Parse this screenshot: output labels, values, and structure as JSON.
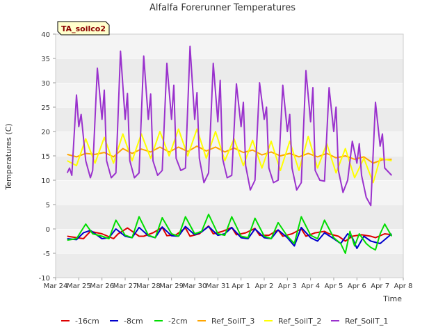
{
  "chart_data": {
    "type": "line",
    "title": "Alfalfa Forerunner Temperatures",
    "xlabel": "Time",
    "ylabel": "Temperatures (C)",
    "badge": "TA_soilco2",
    "xlim": [
      0,
      15
    ],
    "ylim": [
      -10,
      40
    ],
    "x_ticks": [
      {
        "x": 0,
        "label": "Mar 24"
      },
      {
        "x": 1,
        "label": "Mar 25"
      },
      {
        "x": 2,
        "label": "Mar 26"
      },
      {
        "x": 3,
        "label": "Mar 27"
      },
      {
        "x": 4,
        "label": "Mar 28"
      },
      {
        "x": 5,
        "label": "Mar 29"
      },
      {
        "x": 6,
        "label": "Mar 30"
      },
      {
        "x": 7,
        "label": "Mar 31"
      },
      {
        "x": 8,
        "label": "Apr 1"
      },
      {
        "x": 9,
        "label": "Apr 2"
      },
      {
        "x": 10,
        "label": "Apr 3"
      },
      {
        "x": 11,
        "label": "Apr 4"
      },
      {
        "x": 12,
        "label": "Apr 5"
      },
      {
        "x": 13,
        "label": "Apr 6"
      },
      {
        "x": 14,
        "label": "Apr 7"
      },
      {
        "x": 15,
        "label": "Apr 8"
      }
    ],
    "y_ticks": [
      -10,
      -5,
      0,
      5,
      10,
      15,
      20,
      25,
      30,
      35,
      40
    ],
    "grid": true,
    "legend_position": "bottom",
    "series": [
      {
        "name": "-16cm",
        "color": "#dd0000",
        "x": [
          0.5,
          1.2,
          1.5,
          2.0,
          2.5,
          2.7,
          3.1,
          3.6,
          3.8,
          4.2,
          4.6,
          4.8,
          5.2,
          5.6,
          5.8,
          6.2,
          6.6,
          6.8,
          7.2,
          7.6,
          7.8,
          8.2,
          8.6,
          8.8,
          9.2,
          9.6,
          9.8,
          10.2,
          10.6,
          10.8,
          11.2,
          11.6,
          11.8,
          12.2,
          12.5,
          12.8,
          13.2,
          13.6,
          13.8,
          14.2,
          14.5
        ],
        "y": [
          -1.5,
          -2.0,
          -0.5,
          -1.0,
          -2.0,
          -1.0,
          0.2,
          -1.5,
          -1.5,
          -0.8,
          0.3,
          -1.4,
          -1.2,
          0.2,
          -1.5,
          -1.0,
          0.6,
          -1.0,
          -0.5,
          0.3,
          -1.2,
          -0.8,
          0.1,
          -1.3,
          -1.3,
          -0.2,
          -1.5,
          -1.0,
          0.0,
          -1.5,
          -0.8,
          -0.5,
          -1.0,
          -1.5,
          -2.5,
          -1.5,
          -1.2,
          -1.5,
          -1.8,
          -1.0,
          -1.2
        ]
      },
      {
        "name": "-8cm",
        "color": "#0000cc",
        "x": [
          0.5,
          0.9,
          1.2,
          1.5,
          2.0,
          2.3,
          2.6,
          3.0,
          3.3,
          3.6,
          4.0,
          4.3,
          4.6,
          5.0,
          5.3,
          5.6,
          6.0,
          6.3,
          6.6,
          7.0,
          7.3,
          7.6,
          8.0,
          8.3,
          8.6,
          9.0,
          9.3,
          9.6,
          10.0,
          10.3,
          10.6,
          11.0,
          11.3,
          11.6,
          12.0,
          12.3,
          12.6,
          12.8,
          13.0,
          13.3,
          13.6,
          14.0,
          14.5
        ],
        "y": [
          -2.0,
          -2.2,
          -0.8,
          -0.3,
          -2.0,
          -1.8,
          0.0,
          -1.5,
          -1.8,
          0.3,
          -1.4,
          -1.8,
          0.4,
          -1.4,
          -1.5,
          0.5,
          -1.2,
          -0.6,
          0.5,
          -1.3,
          -1.0,
          0.3,
          -1.8,
          -2.0,
          0.0,
          -1.8,
          -2.0,
          -0.2,
          -1.8,
          -3.5,
          0.3,
          -1.8,
          -2.5,
          -0.8,
          -2.0,
          -3.0,
          -1.0,
          -1.8,
          -4.0,
          -1.5,
          -2.5,
          -3.0,
          -1.0
        ]
      },
      {
        "name": "-2cm",
        "color": "#00dd00",
        "x": [
          0.5,
          0.9,
          1.3,
          1.6,
          2.0,
          2.3,
          2.6,
          3.0,
          3.3,
          3.6,
          4.0,
          4.3,
          4.6,
          5.0,
          5.3,
          5.6,
          6.0,
          6.3,
          6.6,
          7.0,
          7.3,
          7.6,
          8.0,
          8.3,
          8.6,
          9.0,
          9.3,
          9.6,
          10.0,
          10.3,
          10.6,
          11.0,
          11.3,
          11.6,
          12.0,
          12.3,
          12.5,
          12.7,
          12.9,
          13.1,
          13.4,
          13.6,
          13.8,
          14.0,
          14.2,
          14.5
        ],
        "y": [
          -2.3,
          -2.0,
          1.0,
          -1.0,
          -1.5,
          -2.0,
          1.8,
          -1.3,
          -1.8,
          2.5,
          -1.3,
          -1.8,
          2.3,
          -1.0,
          -1.5,
          2.5,
          -1.0,
          -0.5,
          3.0,
          -1.0,
          -1.3,
          2.5,
          -1.5,
          -1.8,
          2.2,
          -1.5,
          -2.0,
          1.3,
          -1.5,
          -3.0,
          2.5,
          -1.3,
          -2.0,
          1.8,
          -1.8,
          -3.0,
          -5.0,
          -0.5,
          -3.5,
          -1.0,
          -3.0,
          -3.8,
          -4.3,
          -1.0,
          1.0,
          -1.5
        ]
      },
      {
        "name": "Ref_SoilT_3",
        "color": "#ffa500",
        "x": [
          0.5,
          0.9,
          1.3,
          1.7,
          2.1,
          2.5,
          2.9,
          3.3,
          3.7,
          4.1,
          4.5,
          4.9,
          5.3,
          5.7,
          6.1,
          6.5,
          6.9,
          7.3,
          7.7,
          8.1,
          8.5,
          8.9,
          9.3,
          9.7,
          10.1,
          10.5,
          10.9,
          11.3,
          11.7,
          12.1,
          12.5,
          12.9,
          13.3,
          13.7,
          14.1,
          14.5
        ],
        "y": [
          15.3,
          14.8,
          15.5,
          15.3,
          15.7,
          14.8,
          16.5,
          15.5,
          16.4,
          15.8,
          16.8,
          15.8,
          16.8,
          15.9,
          17.0,
          16.0,
          16.8,
          15.8,
          16.6,
          15.7,
          16.2,
          15.2,
          15.8,
          15.0,
          15.5,
          14.8,
          15.5,
          14.8,
          15.5,
          14.6,
          15.0,
          14.3,
          14.8,
          13.5,
          14.2,
          14.3
        ]
      },
      {
        "name": "Ref_SoilT_2",
        "color": "#ffff00",
        "x": [
          0.5,
          0.9,
          1.3,
          1.7,
          2.1,
          2.5,
          2.9,
          3.3,
          3.7,
          4.1,
          4.5,
          4.9,
          5.3,
          5.7,
          6.1,
          6.5,
          6.9,
          7.3,
          7.7,
          8.1,
          8.5,
          8.9,
          9.3,
          9.7,
          10.1,
          10.5,
          10.9,
          11.3,
          11.7,
          12.1,
          12.5,
          12.9,
          13.3,
          13.7,
          14.0,
          14.5
        ],
        "y": [
          14.0,
          13.0,
          18.5,
          13.5,
          18.8,
          13.5,
          19.5,
          14.0,
          19.5,
          14.5,
          20.0,
          15.0,
          20.5,
          15.0,
          20.5,
          14.5,
          20.0,
          14.0,
          18.5,
          13.0,
          18.2,
          12.5,
          18.0,
          12.0,
          18.0,
          12.0,
          19.0,
          12.5,
          17.5,
          11.5,
          16.5,
          10.5,
          14.5,
          9.5,
          14.5,
          14.0
        ]
      },
      {
        "name": "Ref_SoilT_1",
        "color": "#9a32cd",
        "x": [
          0.5,
          0.6,
          0.7,
          0.9,
          1.0,
          1.1,
          1.3,
          1.5,
          1.6,
          1.8,
          2.0,
          2.1,
          2.2,
          2.4,
          2.6,
          2.8,
          3.0,
          3.1,
          3.2,
          3.4,
          3.6,
          3.8,
          4.0,
          4.1,
          4.2,
          4.4,
          4.6,
          4.8,
          5.0,
          5.1,
          5.2,
          5.4,
          5.6,
          5.8,
          6.0,
          6.1,
          6.2,
          6.4,
          6.6,
          6.8,
          7.0,
          7.1,
          7.2,
          7.4,
          7.6,
          7.8,
          8.0,
          8.1,
          8.2,
          8.4,
          8.6,
          8.8,
          9.0,
          9.1,
          9.2,
          9.4,
          9.6,
          9.8,
          10.0,
          10.1,
          10.2,
          10.4,
          10.6,
          10.8,
          11.0,
          11.1,
          11.2,
          11.4,
          11.6,
          11.8,
          12.0,
          12.1,
          12.2,
          12.4,
          12.6,
          12.8,
          13.0,
          13.1,
          13.2,
          13.4,
          13.6,
          13.8,
          14.0,
          14.1,
          14.2,
          14.5
        ],
        "y": [
          11.5,
          12.5,
          11.0,
          27.5,
          21.0,
          23.5,
          14.0,
          10.5,
          12.0,
          33.0,
          22.5,
          28.5,
          14.0,
          10.5,
          11.5,
          36.5,
          22.5,
          27.8,
          14.0,
          10.5,
          11.5,
          35.5,
          22.5,
          27.7,
          14.0,
          11.0,
          12.0,
          34.0,
          22.5,
          29.5,
          14.5,
          12.0,
          12.5,
          37.5,
          22.5,
          28.0,
          14.5,
          9.5,
          11.5,
          34.0,
          22.0,
          30.5,
          14.5,
          10.5,
          11.0,
          29.8,
          21.0,
          26.0,
          13.0,
          8.0,
          10.0,
          30.0,
          22.5,
          25.0,
          12.5,
          9.5,
          10.0,
          29.5,
          20.0,
          23.5,
          12.5,
          8.0,
          9.5,
          32.5,
          22.0,
          29.0,
          12.0,
          10.0,
          9.8,
          29.0,
          20.0,
          25.0,
          12.0,
          7.5,
          10.0,
          18.0,
          13.5,
          17.5,
          11.0,
          6.5,
          4.8,
          26.0,
          17.0,
          19.5,
          12.5,
          11.0
        ]
      }
    ]
  }
}
